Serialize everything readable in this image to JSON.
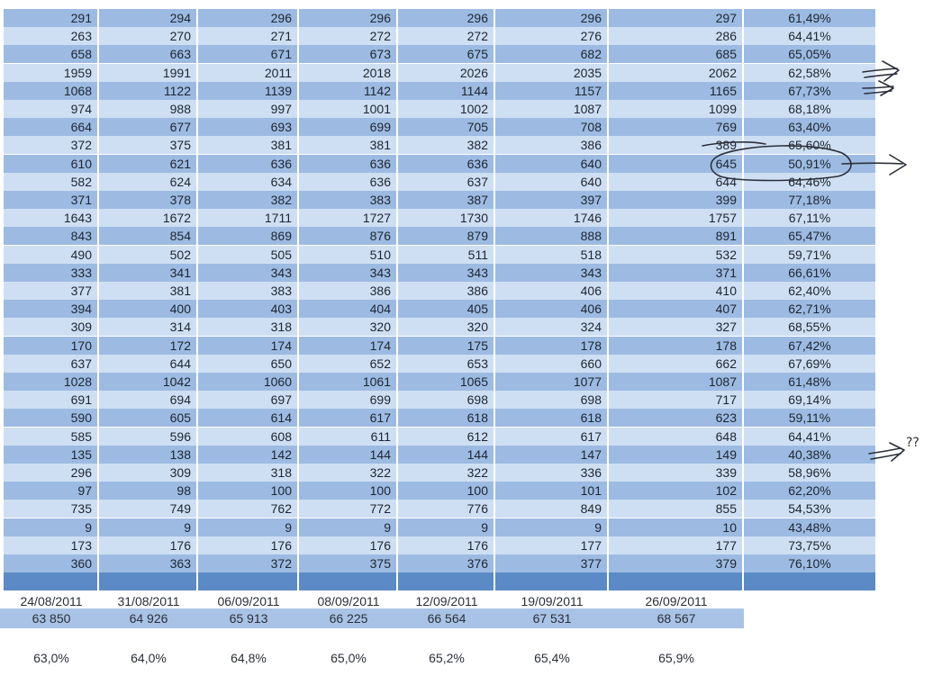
{
  "table": {
    "rows": [
      [
        "291",
        "294",
        "296",
        "296",
        "296",
        "296",
        "297",
        "61,49%"
      ],
      [
        "263",
        "270",
        "271",
        "272",
        "272",
        "276",
        "286",
        "64,41%"
      ],
      [
        "658",
        "663",
        "671",
        "673",
        "675",
        "682",
        "685",
        "65,05%"
      ],
      [
        "1959",
        "1991",
        "2011",
        "2018",
        "2026",
        "2035",
        "2062",
        "62,58%"
      ],
      [
        "1068",
        "1122",
        "1139",
        "1142",
        "1144",
        "1157",
        "1165",
        "67,73%"
      ],
      [
        "974",
        "988",
        "997",
        "1001",
        "1002",
        "1087",
        "1099",
        "68,18%"
      ],
      [
        "664",
        "677",
        "693",
        "699",
        "705",
        "708",
        "769",
        "63,40%"
      ],
      [
        "372",
        "375",
        "381",
        "381",
        "382",
        "386",
        "389",
        "65,60%"
      ],
      [
        "610",
        "621",
        "636",
        "636",
        "636",
        "640",
        "645",
        "50,91%"
      ],
      [
        "582",
        "624",
        "634",
        "636",
        "637",
        "640",
        "644",
        "64,46%"
      ],
      [
        "371",
        "378",
        "382",
        "383",
        "387",
        "397",
        "399",
        "77,18%"
      ],
      [
        "1643",
        "1672",
        "1711",
        "1727",
        "1730",
        "1746",
        "1757",
        "67,11%"
      ],
      [
        "843",
        "854",
        "869",
        "876",
        "879",
        "888",
        "891",
        "65,47%"
      ],
      [
        "490",
        "502",
        "505",
        "510",
        "511",
        "518",
        "532",
        "59,71%"
      ],
      [
        "333",
        "341",
        "343",
        "343",
        "343",
        "343",
        "371",
        "66,61%"
      ],
      [
        "377",
        "381",
        "383",
        "386",
        "386",
        "406",
        "410",
        "62,40%"
      ],
      [
        "394",
        "400",
        "403",
        "404",
        "405",
        "406",
        "407",
        "62,71%"
      ],
      [
        "309",
        "314",
        "318",
        "320",
        "320",
        "324",
        "327",
        "68,55%"
      ],
      [
        "170",
        "172",
        "174",
        "174",
        "175",
        "178",
        "178",
        "67,42%"
      ],
      [
        "637",
        "644",
        "650",
        "652",
        "653",
        "660",
        "662",
        "67,69%"
      ],
      [
        "1028",
        "1042",
        "1060",
        "1061",
        "1065",
        "1077",
        "1087",
        "61,48%"
      ],
      [
        "691",
        "694",
        "697",
        "699",
        "698",
        "698",
        "717",
        "69,14%"
      ],
      [
        "590",
        "605",
        "614",
        "617",
        "618",
        "618",
        "623",
        "59,11%"
      ],
      [
        "585",
        "596",
        "608",
        "611",
        "612",
        "617",
        "648",
        "64,41%"
      ],
      [
        "135",
        "138",
        "142",
        "144",
        "144",
        "147",
        "149",
        "40,38%"
      ],
      [
        "296",
        "309",
        "318",
        "322",
        "322",
        "336",
        "339",
        "58,96%"
      ],
      [
        "97",
        "98",
        "100",
        "100",
        "100",
        "101",
        "102",
        "62,20%"
      ],
      [
        "735",
        "749",
        "762",
        "772",
        "776",
        "849",
        "855",
        "54,53%"
      ],
      [
        "9",
        "9",
        "9",
        "9",
        "9",
        "9",
        "10",
        "43,48%"
      ],
      [
        "173",
        "176",
        "176",
        "176",
        "176",
        "177",
        "177",
        "73,75%"
      ],
      [
        "360",
        "363",
        "372",
        "375",
        "376",
        "377",
        "379",
        "76,10%"
      ]
    ]
  },
  "summary": {
    "dates": [
      "24/08/2011",
      "31/08/2011",
      "06/09/2011",
      "08/09/2011",
      "12/09/2011",
      "19/09/2011",
      "26/09/2011"
    ],
    "totals": [
      "63 850",
      "64 926",
      "65 913",
      "66 225",
      "66 564",
      "67 531",
      "68 567"
    ],
    "percents": [
      "63,0%",
      "64,0%",
      "64,8%",
      "65,0%",
      "65,2%",
      "65,4%",
      "65,9%"
    ]
  },
  "annotations": {
    "question_mark_text": "??",
    "ink_color": "#2b2f3a"
  },
  "colors": {
    "row_dark": "#9dbbe2",
    "row_light": "#cfdff3",
    "band": "#5b8ac6"
  }
}
